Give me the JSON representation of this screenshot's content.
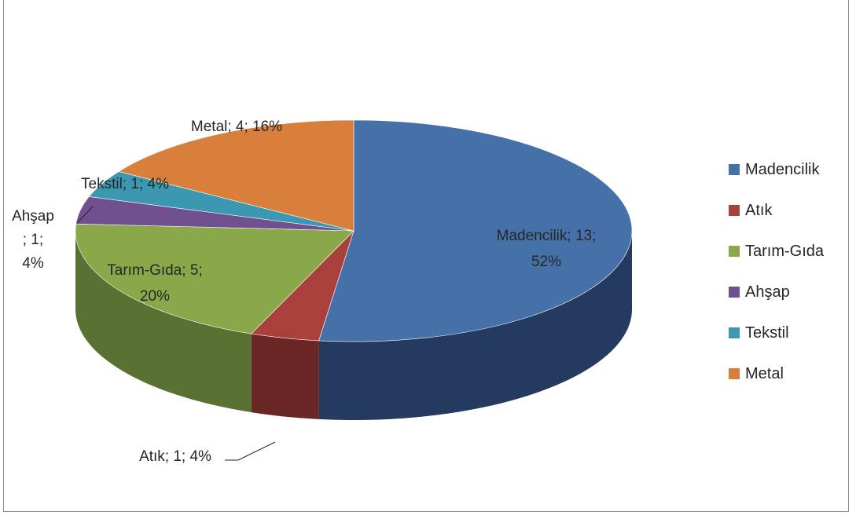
{
  "chart_data": {
    "type": "pie",
    "categories": [
      "Madencilik",
      "Atık",
      "Tarım-Gıda",
      "Ahşap",
      "Tekstil",
      "Metal"
    ],
    "values": [
      13,
      1,
      5,
      1,
      1,
      4
    ],
    "percent": [
      52,
      4,
      20,
      4,
      4,
      16
    ],
    "colors": [
      "#4571a8",
      "#a9403c",
      "#88a84a",
      "#70508e",
      "#3b98b0",
      "#d77f3b"
    ],
    "side_colors": [
      "#243a5e",
      "#6a2624",
      "#597231",
      "#4a3460",
      "#266273",
      "#94562a"
    ],
    "data_labels": [
      [
        "Madencilik; 13;",
        "52%"
      ],
      [
        "Atık; 1; 4%"
      ],
      [
        "Tarım-Gıda; 5;",
        "20%"
      ],
      [
        "Ahşap",
        "; 1;",
        "4%"
      ],
      [
        "Tekstil; 1; 4%"
      ],
      [
        "Metal; 4; 16%"
      ]
    ],
    "legend": [
      "Madencilik",
      "Atık",
      "Tarım-Gıda",
      "Ahşap",
      "Tekstil",
      "Metal"
    ],
    "legend_position": "right"
  }
}
